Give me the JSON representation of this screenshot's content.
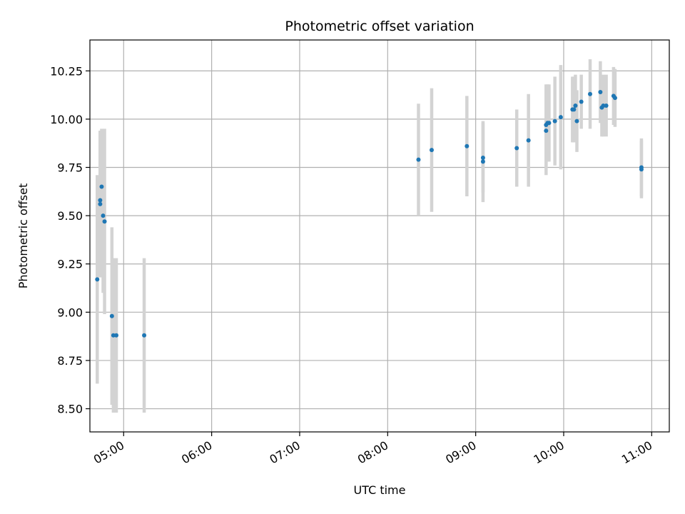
{
  "chart_data": {
    "type": "scatter",
    "title": "Photometric offset variation",
    "xlabel": "UTC time",
    "ylabel": "Photometric offset",
    "grid": true,
    "xlim": [
      "04:37",
      "11:12"
    ],
    "ylim": [
      8.38,
      10.41
    ],
    "x_ticks": [
      "05:00",
      "06:00",
      "07:00",
      "08:00",
      "09:00",
      "10:00",
      "11:00"
    ],
    "y_ticks": [
      "8.50",
      "8.75",
      "9.00",
      "9.25",
      "9.50",
      "9.75",
      "10.00",
      "10.25"
    ],
    "colors": {
      "point": "#1f77b4",
      "error_bar": "#d3d3d3",
      "grid": "#b0b0b0"
    },
    "series": [
      {
        "points": [
          {
            "x": "04:42",
            "y": 9.17,
            "err": 0.54
          },
          {
            "x": "04:44",
            "y": 9.58,
            "err": 0.36
          },
          {
            "x": "04:44",
            "y": 9.56,
            "err": 0.38
          },
          {
            "x": "04:45",
            "y": 9.65,
            "err": 0.3
          },
          {
            "x": "04:46",
            "y": 9.5,
            "err": 0.4
          },
          {
            "x": "04:47",
            "y": 9.47,
            "err": 0.48
          },
          {
            "x": "04:52",
            "y": 8.98,
            "err": 0.46
          },
          {
            "x": "04:53",
            "y": 8.88,
            "err": 0.4
          },
          {
            "x": "04:55",
            "y": 8.88,
            "err": 0.4
          },
          {
            "x": "05:14",
            "y": 8.88,
            "err": 0.4
          },
          {
            "x": "08:21",
            "y": 9.79,
            "err": 0.29
          },
          {
            "x": "08:30",
            "y": 9.84,
            "err": 0.32
          },
          {
            "x": "08:54",
            "y": 9.86,
            "err": 0.26
          },
          {
            "x": "09:05",
            "y": 9.78,
            "err": 0.21
          },
          {
            "x": "09:05",
            "y": 9.8,
            "err": 0.18
          },
          {
            "x": "09:28",
            "y": 9.85,
            "err": 0.2
          },
          {
            "x": "09:36",
            "y": 9.89,
            "err": 0.24
          },
          {
            "x": "09:48",
            "y": 9.94,
            "err": 0.23
          },
          {
            "x": "09:48",
            "y": 9.97,
            "err": 0.21
          },
          {
            "x": "09:49",
            "y": 9.98,
            "err": 0.2
          },
          {
            "x": "09:50",
            "y": 9.98,
            "err": 0.2
          },
          {
            "x": "09:54",
            "y": 9.99,
            "err": 0.23
          },
          {
            "x": "09:58",
            "y": 10.01,
            "err": 0.27
          },
          {
            "x": "10:06",
            "y": 10.05,
            "err": 0.17
          },
          {
            "x": "10:07",
            "y": 10.05,
            "err": 0.17
          },
          {
            "x": "10:08",
            "y": 10.07,
            "err": 0.16
          },
          {
            "x": "10:09",
            "y": 9.99,
            "err": 0.16
          },
          {
            "x": "10:12",
            "y": 10.09,
            "err": 0.14
          },
          {
            "x": "10:18",
            "y": 10.13,
            "err": 0.18
          },
          {
            "x": "10:25",
            "y": 10.14,
            "err": 0.16
          },
          {
            "x": "10:26",
            "y": 10.06,
            "err": 0.15
          },
          {
            "x": "10:27",
            "y": 10.07,
            "err": 0.16
          },
          {
            "x": "10:29",
            "y": 10.07,
            "err": 0.16
          },
          {
            "x": "10:34",
            "y": 10.12,
            "err": 0.15
          },
          {
            "x": "10:35",
            "y": 10.11,
            "err": 0.15
          },
          {
            "x": "10:53",
            "y": 9.75,
            "err": 0.15
          },
          {
            "x": "10:53",
            "y": 9.74,
            "err": 0.15
          }
        ]
      }
    ]
  }
}
